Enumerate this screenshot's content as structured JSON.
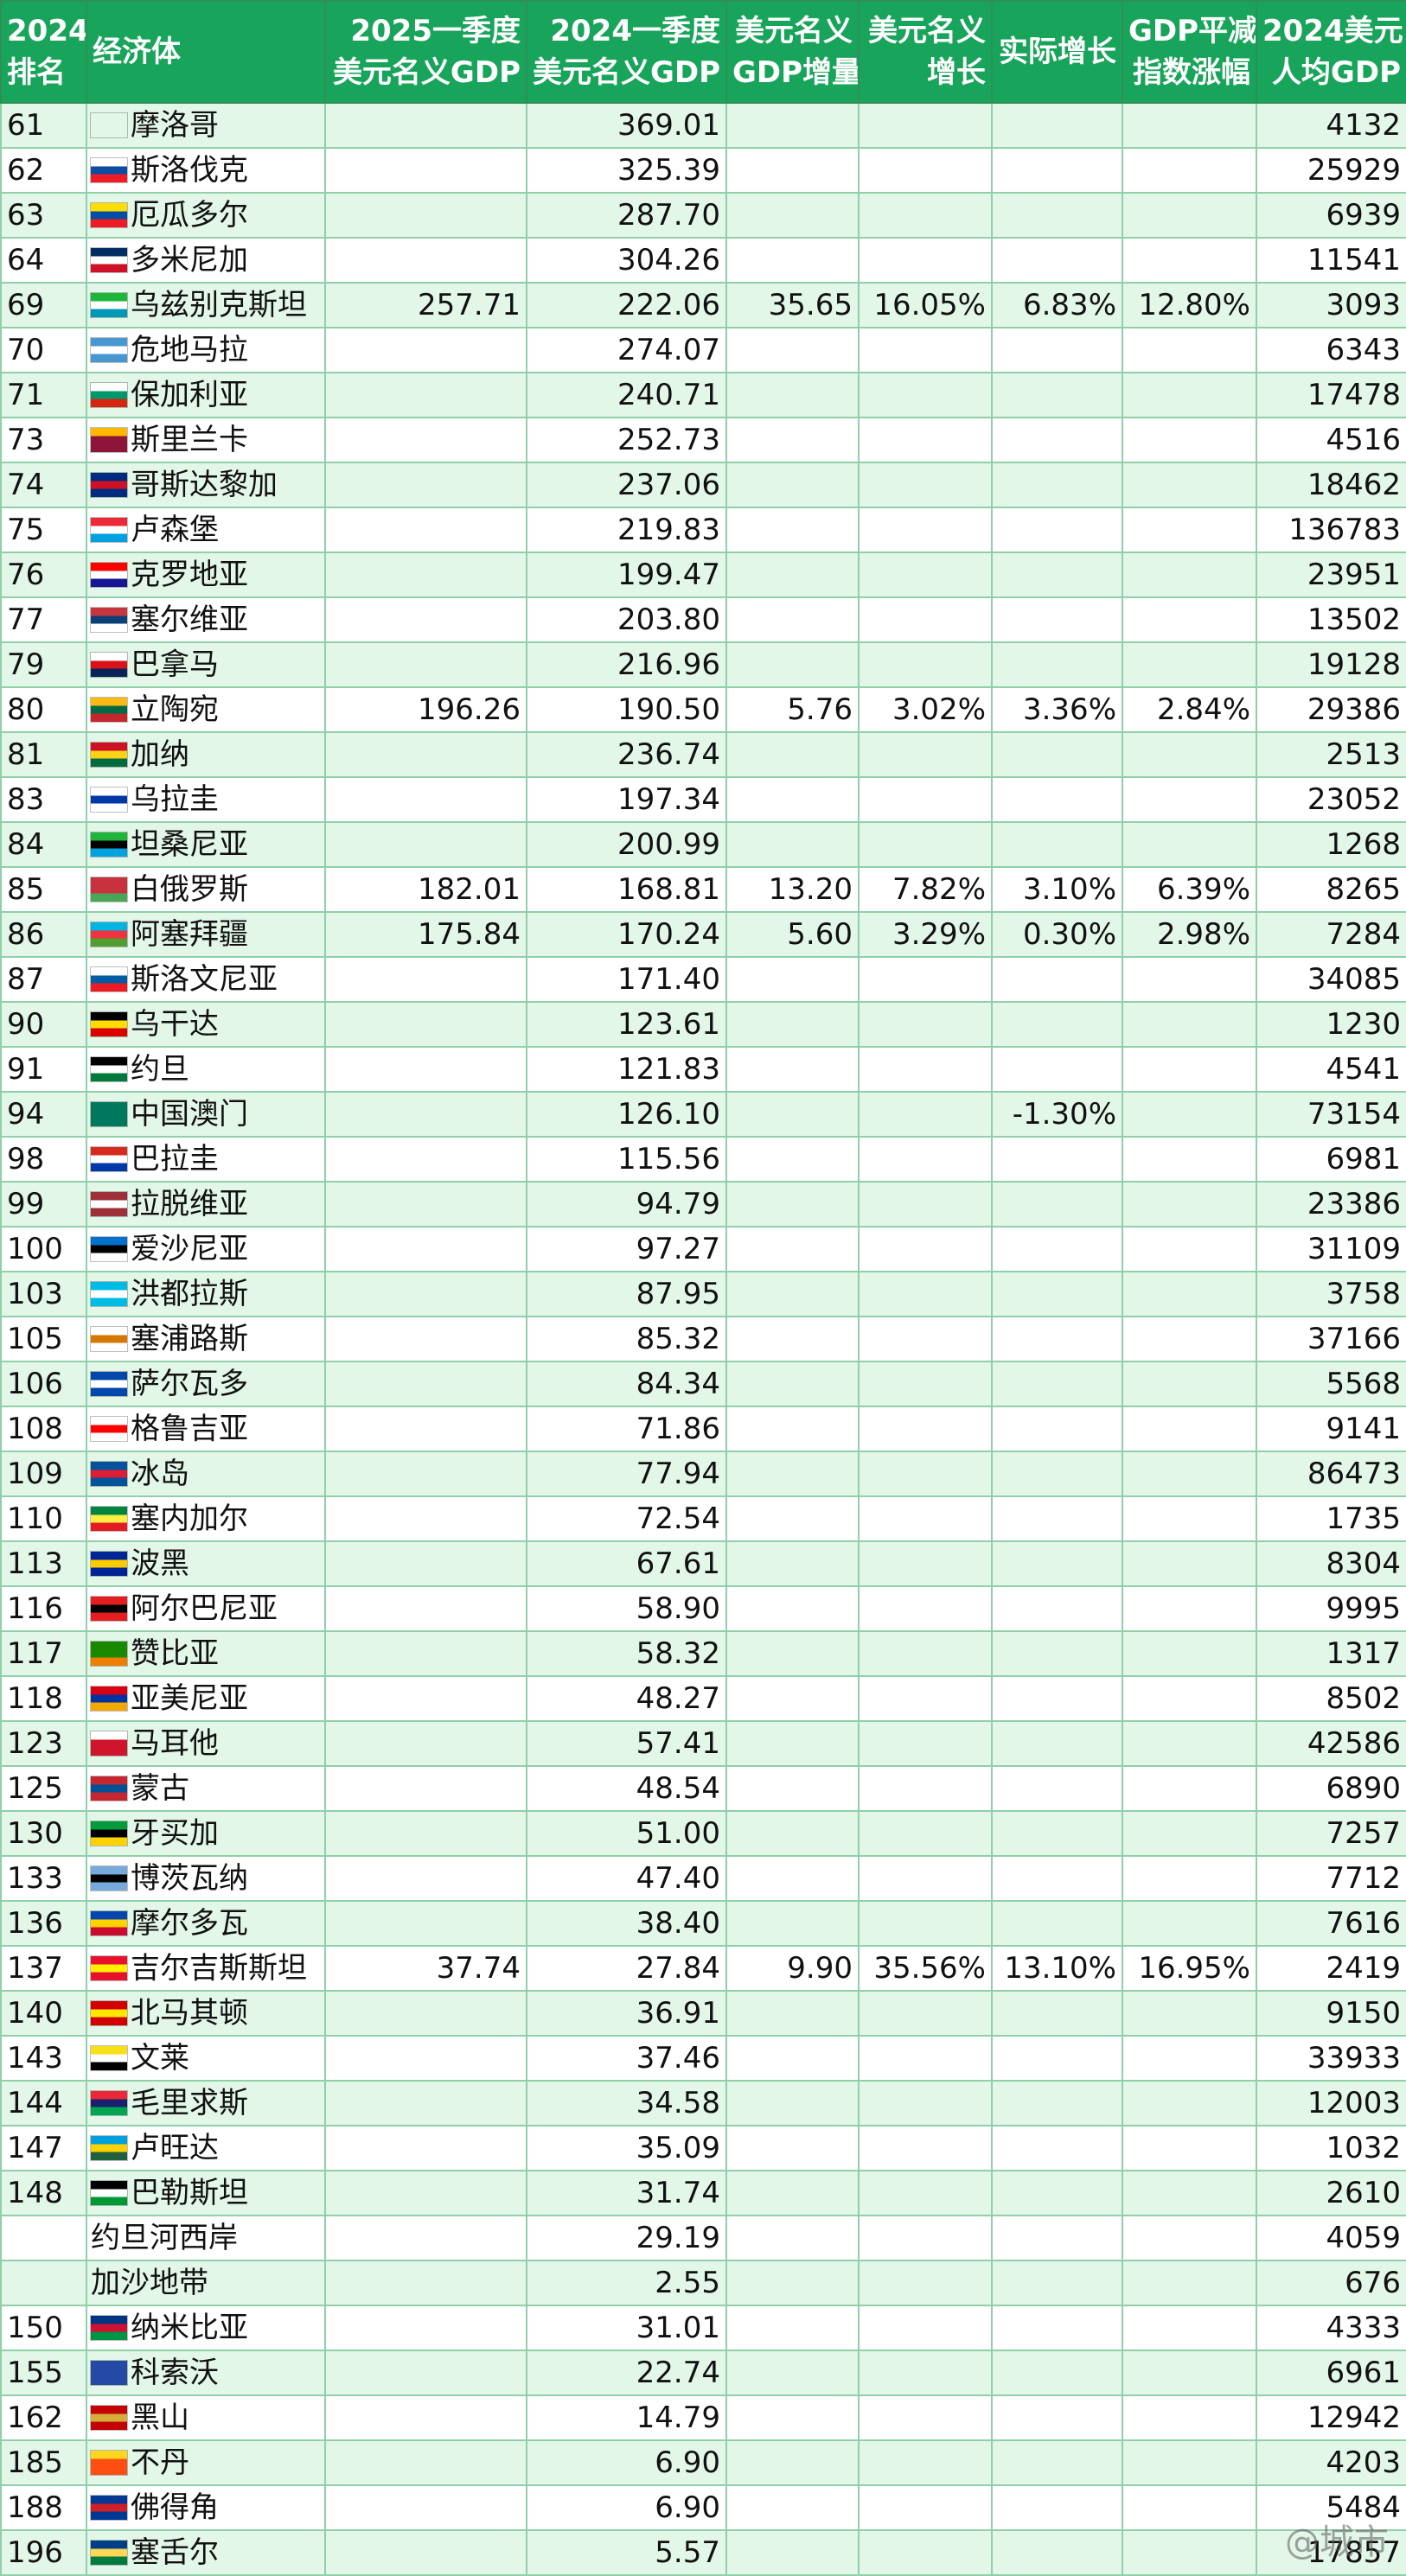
{
  "table": {
    "headers": [
      [
        "2024",
        "排名"
      ],
      [
        "经济体"
      ],
      [
        "2025一季度",
        "美元名义GDP"
      ],
      [
        "2024一季度",
        "美元名义GDP"
      ],
      [
        "美元名义",
        "GDP增量"
      ],
      [
        "美元名义",
        "增长"
      ],
      [
        "实际增长"
      ],
      [
        "GDP平减",
        "指数涨幅"
      ],
      [
        "2024美元",
        "人均GDP"
      ]
    ],
    "rows": [
      {
        "rank": "61",
        "name": "摩洛哥",
        "flag": [
          "#c1272d",
          "#c1272d"
        ],
        "gdp2025": "",
        "gdp2024": "369.01",
        "inc": "",
        "nom": "",
        "real": "",
        "defl": "",
        "pc": "4132"
      },
      {
        "rank": "62",
        "name": "斯洛伐克",
        "flag": [
          "#ffffff",
          "#0b4ea2",
          "#ee1c25"
        ],
        "gdp2025": "",
        "gdp2024": "325.39",
        "inc": "",
        "nom": "",
        "real": "",
        "defl": "",
        "pc": "25929"
      },
      {
        "rank": "63",
        "name": "厄瓜多尔",
        "flag": [
          "#ffdd00",
          "#034ea2",
          "#ed1c24"
        ],
        "gdp2025": "",
        "gdp2024": "287.70",
        "inc": "",
        "nom": "",
        "real": "",
        "defl": "",
        "pc": "6939"
      },
      {
        "rank": "64",
        "name": "多米尼加",
        "flag": [
          "#002d62",
          "#ffffff",
          "#ce1126"
        ],
        "gdp2025": "",
        "gdp2024": "304.26",
        "inc": "",
        "nom": "",
        "real": "",
        "defl": "",
        "pc": "11541"
      },
      {
        "rank": "69",
        "name": "乌兹别克斯坦",
        "flag": [
          "#1eb53a",
          "#ffffff",
          "#0099b5"
        ],
        "gdp2025": "257.71",
        "gdp2024": "222.06",
        "inc": "35.65",
        "nom": "16.05%",
        "real": "6.83%",
        "defl": "12.80%",
        "pc": "3093"
      },
      {
        "rank": "70",
        "name": "危地马拉",
        "flag": [
          "#4997d0",
          "#ffffff",
          "#4997d0"
        ],
        "gdp2025": "",
        "gdp2024": "274.07",
        "inc": "",
        "nom": "",
        "real": "",
        "defl": "",
        "pc": "6343"
      },
      {
        "rank": "71",
        "name": "保加利亚",
        "flag": [
          "#ffffff",
          "#00966e",
          "#d62612"
        ],
        "gdp2025": "",
        "gdp2024": "240.71",
        "inc": "",
        "nom": "",
        "real": "",
        "defl": "",
        "pc": "17478"
      },
      {
        "rank": "73",
        "name": "斯里兰卡",
        "flag": [
          "#ffb700",
          "#8d153a",
          "#8d153a"
        ],
        "gdp2025": "",
        "gdp2024": "252.73",
        "inc": "",
        "nom": "",
        "real": "",
        "defl": "",
        "pc": "4516"
      },
      {
        "rank": "74",
        "name": "哥斯达黎加",
        "flag": [
          "#002b7f",
          "#ce1126",
          "#002b7f"
        ],
        "gdp2025": "",
        "gdp2024": "237.06",
        "inc": "",
        "nom": "",
        "real": "",
        "defl": "",
        "pc": "18462"
      },
      {
        "rank": "75",
        "name": "卢森堡",
        "flag": [
          "#ed2939",
          "#ffffff",
          "#00a1de"
        ],
        "gdp2025": "",
        "gdp2024": "219.83",
        "inc": "",
        "nom": "",
        "real": "",
        "defl": "",
        "pc": "136783"
      },
      {
        "rank": "76",
        "name": "克罗地亚",
        "flag": [
          "#ff0000",
          "#ffffff",
          "#171796"
        ],
        "gdp2025": "",
        "gdp2024": "199.47",
        "inc": "",
        "nom": "",
        "real": "",
        "defl": "",
        "pc": "23951"
      },
      {
        "rank": "77",
        "name": "塞尔维亚",
        "flag": [
          "#c6363c",
          "#0c4076",
          "#ffffff"
        ],
        "gdp2025": "",
        "gdp2024": "203.80",
        "inc": "",
        "nom": "",
        "real": "",
        "defl": "",
        "pc": "13502"
      },
      {
        "rank": "79",
        "name": "巴拿马",
        "flag": [
          "#ffffff",
          "#da121a",
          "#072357"
        ],
        "gdp2025": "",
        "gdp2024": "216.96",
        "inc": "",
        "nom": "",
        "real": "",
        "defl": "",
        "pc": "19128"
      },
      {
        "rank": "80",
        "name": "立陶宛",
        "flag": [
          "#fdb913",
          "#006a44",
          "#c1272d"
        ],
        "gdp2025": "196.26",
        "gdp2024": "190.50",
        "inc": "5.76",
        "nom": "3.02%",
        "real": "3.36%",
        "defl": "2.84%",
        "pc": "29386"
      },
      {
        "rank": "81",
        "name": "加纳",
        "flag": [
          "#ce1126",
          "#fcd116",
          "#006b3f"
        ],
        "gdp2025": "",
        "gdp2024": "236.74",
        "inc": "",
        "nom": "",
        "real": "",
        "defl": "",
        "pc": "2513"
      },
      {
        "rank": "83",
        "name": "乌拉圭",
        "flag": [
          "#ffffff",
          "#0038a8",
          "#ffffff"
        ],
        "gdp2025": "",
        "gdp2024": "197.34",
        "inc": "",
        "nom": "",
        "real": "",
        "defl": "",
        "pc": "23052"
      },
      {
        "rank": "84",
        "name": "坦桑尼亚",
        "flag": [
          "#1eb53a",
          "#000000",
          "#00a3dd"
        ],
        "gdp2025": "",
        "gdp2024": "200.99",
        "inc": "",
        "nom": "",
        "real": "",
        "defl": "",
        "pc": "1268"
      },
      {
        "rank": "85",
        "name": "白俄罗斯",
        "flag": [
          "#c8313e",
          "#c8313e",
          "#4aa657"
        ],
        "gdp2025": "182.01",
        "gdp2024": "168.81",
        "inc": "13.20",
        "nom": "7.82%",
        "real": "3.10%",
        "defl": "6.39%",
        "pc": "8265"
      },
      {
        "rank": "86",
        "name": "阿塞拜疆",
        "flag": [
          "#00b5e2",
          "#ef3340",
          "#509e2f"
        ],
        "gdp2025": "175.84",
        "gdp2024": "170.24",
        "inc": "5.60",
        "nom": "3.29%",
        "real": "0.30%",
        "defl": "2.98%",
        "pc": "7284"
      },
      {
        "rank": "87",
        "name": "斯洛文尼亚",
        "flag": [
          "#ffffff",
          "#005da4",
          "#ed1c24"
        ],
        "gdp2025": "",
        "gdp2024": "171.40",
        "inc": "",
        "nom": "",
        "real": "",
        "defl": "",
        "pc": "34085"
      },
      {
        "rank": "90",
        "name": "乌干达",
        "flag": [
          "#000000",
          "#fcdc04",
          "#d90000"
        ],
        "gdp2025": "",
        "gdp2024": "123.61",
        "inc": "",
        "nom": "",
        "real": "",
        "defl": "",
        "pc": "1230"
      },
      {
        "rank": "91",
        "name": "约旦",
        "flag": [
          "#000000",
          "#ffffff",
          "#007a3d"
        ],
        "gdp2025": "",
        "gdp2024": "121.83",
        "inc": "",
        "nom": "",
        "real": "",
        "defl": "",
        "pc": "4541"
      },
      {
        "rank": "94",
        "name": "中国澳门",
        "flag": [
          "#00785e",
          "#00785e",
          "#00785e"
        ],
        "gdp2025": "",
        "gdp2024": "126.10",
        "inc": "",
        "nom": "",
        "real": "-1.30%",
        "defl": "",
        "pc": "73154"
      },
      {
        "rank": "98",
        "name": "巴拉圭",
        "flag": [
          "#d52b1e",
          "#ffffff",
          "#0038a8"
        ],
        "gdp2025": "",
        "gdp2024": "115.56",
        "inc": "",
        "nom": "",
        "real": "",
        "defl": "",
        "pc": "6981"
      },
      {
        "rank": "99",
        "name": "拉脱维亚",
        "flag": [
          "#9e3039",
          "#ffffff",
          "#9e3039"
        ],
        "gdp2025": "",
        "gdp2024": "94.79",
        "inc": "",
        "nom": "",
        "real": "",
        "defl": "",
        "pc": "23386"
      },
      {
        "rank": "100",
        "name": "爱沙尼亚",
        "flag": [
          "#0072ce",
          "#000000",
          "#ffffff"
        ],
        "gdp2025": "",
        "gdp2024": "97.27",
        "inc": "",
        "nom": "",
        "real": "",
        "defl": "",
        "pc": "31109"
      },
      {
        "rank": "103",
        "name": "洪都拉斯",
        "flag": [
          "#00bce4",
          "#ffffff",
          "#00bce4"
        ],
        "gdp2025": "",
        "gdp2024": "87.95",
        "inc": "",
        "nom": "",
        "real": "",
        "defl": "",
        "pc": "3758"
      },
      {
        "rank": "105",
        "name": "塞浦路斯",
        "flag": [
          "#ffffff",
          "#d57800",
          "#ffffff"
        ],
        "gdp2025": "",
        "gdp2024": "85.32",
        "inc": "",
        "nom": "",
        "real": "",
        "defl": "",
        "pc": "37166"
      },
      {
        "rank": "106",
        "name": "萨尔瓦多",
        "flag": [
          "#0047ab",
          "#ffffff",
          "#0047ab"
        ],
        "gdp2025": "",
        "gdp2024": "84.34",
        "inc": "",
        "nom": "",
        "real": "",
        "defl": "",
        "pc": "5568"
      },
      {
        "rank": "108",
        "name": "格鲁吉亚",
        "flag": [
          "#ffffff",
          "#ff0000",
          "#ffffff"
        ],
        "gdp2025": "",
        "gdp2024": "71.86",
        "inc": "",
        "nom": "",
        "real": "",
        "defl": "",
        "pc": "9141"
      },
      {
        "rank": "109",
        "name": "冰岛",
        "flag": [
          "#02529c",
          "#dc1e35",
          "#02529c"
        ],
        "gdp2025": "",
        "gdp2024": "77.94",
        "inc": "",
        "nom": "",
        "real": "",
        "defl": "",
        "pc": "86473"
      },
      {
        "rank": "110",
        "name": "塞内加尔",
        "flag": [
          "#00853f",
          "#fdef42",
          "#e31b23"
        ],
        "gdp2025": "",
        "gdp2024": "72.54",
        "inc": "",
        "nom": "",
        "real": "",
        "defl": "",
        "pc": "1735"
      },
      {
        "rank": "113",
        "name": "波黑",
        "flag": [
          "#002395",
          "#fecb00",
          "#002395"
        ],
        "gdp2025": "",
        "gdp2024": "67.61",
        "inc": "",
        "nom": "",
        "real": "",
        "defl": "",
        "pc": "8304"
      },
      {
        "rank": "116",
        "name": "阿尔巴尼亚",
        "flag": [
          "#e41e20",
          "#000000",
          "#e41e20"
        ],
        "gdp2025": "",
        "gdp2024": "58.90",
        "inc": "",
        "nom": "",
        "real": "",
        "defl": "",
        "pc": "9995"
      },
      {
        "rank": "117",
        "name": "赞比亚",
        "flag": [
          "#198a00",
          "#198a00",
          "#ef7d00"
        ],
        "gdp2025": "",
        "gdp2024": "58.32",
        "inc": "",
        "nom": "",
        "real": "",
        "defl": "",
        "pc": "1317"
      },
      {
        "rank": "118",
        "name": "亚美尼亚",
        "flag": [
          "#d90012",
          "#0033a0",
          "#f2a800"
        ],
        "gdp2025": "",
        "gdp2024": "48.27",
        "inc": "",
        "nom": "",
        "real": "",
        "defl": "",
        "pc": "8502"
      },
      {
        "rank": "123",
        "name": "马耳他",
        "flag": [
          "#ffffff",
          "#cf142b",
          "#cf142b"
        ],
        "gdp2025": "",
        "gdp2024": "57.41",
        "inc": "",
        "nom": "",
        "real": "",
        "defl": "",
        "pc": "42586"
      },
      {
        "rank": "125",
        "name": "蒙古",
        "flag": [
          "#c4272f",
          "#015197",
          "#c4272f"
        ],
        "gdp2025": "",
        "gdp2024": "48.54",
        "inc": "",
        "nom": "",
        "real": "",
        "defl": "",
        "pc": "6890"
      },
      {
        "rank": "130",
        "name": "牙买加",
        "flag": [
          "#009b3a",
          "#000000",
          "#fed100"
        ],
        "gdp2025": "",
        "gdp2024": "51.00",
        "inc": "",
        "nom": "",
        "real": "",
        "defl": "",
        "pc": "7257"
      },
      {
        "rank": "133",
        "name": "博茨瓦纳",
        "flag": [
          "#75aadb",
          "#000000",
          "#75aadb"
        ],
        "gdp2025": "",
        "gdp2024": "47.40",
        "inc": "",
        "nom": "",
        "real": "",
        "defl": "",
        "pc": "7712"
      },
      {
        "rank": "136",
        "name": "摩尔多瓦",
        "flag": [
          "#0046ae",
          "#ffd200",
          "#cc092f"
        ],
        "gdp2025": "",
        "gdp2024": "38.40",
        "inc": "",
        "nom": "",
        "real": "",
        "defl": "",
        "pc": "7616"
      },
      {
        "rank": "137",
        "name": "吉尔吉斯斯坦",
        "flag": [
          "#e8112d",
          "#ffef00",
          "#e8112d"
        ],
        "gdp2025": "37.74",
        "gdp2024": "27.84",
        "inc": "9.90",
        "nom": "35.56%",
        "real": "13.10%",
        "defl": "16.95%",
        "pc": "2419"
      },
      {
        "rank": "140",
        "name": "北马其顿",
        "flag": [
          "#d20000",
          "#ffe600",
          "#d20000"
        ],
        "gdp2025": "",
        "gdp2024": "36.91",
        "inc": "",
        "nom": "",
        "real": "",
        "defl": "",
        "pc": "9150"
      },
      {
        "rank": "143",
        "name": "文莱",
        "flag": [
          "#f7e017",
          "#ffffff",
          "#000000"
        ],
        "gdp2025": "",
        "gdp2024": "37.46",
        "inc": "",
        "nom": "",
        "real": "",
        "defl": "",
        "pc": "33933"
      },
      {
        "rank": "144",
        "name": "毛里求斯",
        "flag": [
          "#ea2839",
          "#1a206d",
          "#00a551"
        ],
        "gdp2025": "",
        "gdp2024": "34.58",
        "inc": "",
        "nom": "",
        "real": "",
        "defl": "",
        "pc": "12003"
      },
      {
        "rank": "147",
        "name": "卢旺达",
        "flag": [
          "#00a1de",
          "#fad201",
          "#20603d"
        ],
        "gdp2025": "",
        "gdp2024": "35.09",
        "inc": "",
        "nom": "",
        "real": "",
        "defl": "",
        "pc": "1032"
      },
      {
        "rank": "148",
        "name": "巴勒斯坦",
        "flag": [
          "#000000",
          "#ffffff",
          "#009736"
        ],
        "gdp2025": "",
        "gdp2024": "31.74",
        "inc": "",
        "nom": "",
        "real": "",
        "defl": "",
        "pc": "2610"
      },
      {
        "rank": "",
        "name": "约旦河西岸",
        "flag": null,
        "gdp2025": "",
        "gdp2024": "29.19",
        "inc": "",
        "nom": "",
        "real": "",
        "defl": "",
        "pc": "4059"
      },
      {
        "rank": "",
        "name": "加沙地带",
        "flag": null,
        "gdp2025": "",
        "gdp2024": "2.55",
        "inc": "",
        "nom": "",
        "real": "",
        "defl": "",
        "pc": "676"
      },
      {
        "rank": "150",
        "name": "纳米比亚",
        "flag": [
          "#003580",
          "#d21034",
          "#009543"
        ],
        "gdp2025": "",
        "gdp2024": "31.01",
        "inc": "",
        "nom": "",
        "real": "",
        "defl": "",
        "pc": "4333"
      },
      {
        "rank": "155",
        "name": "科索沃",
        "flag": [
          "#244aa5",
          "#244aa5",
          "#244aa5"
        ],
        "gdp2025": "",
        "gdp2024": "22.74",
        "inc": "",
        "nom": "",
        "real": "",
        "defl": "",
        "pc": "6961"
      },
      {
        "rank": "162",
        "name": "黑山",
        "flag": [
          "#c40308",
          "#d4af37",
          "#c40308"
        ],
        "gdp2025": "",
        "gdp2024": "14.79",
        "inc": "",
        "nom": "",
        "real": "",
        "defl": "",
        "pc": "12942"
      },
      {
        "rank": "185",
        "name": "不丹",
        "flag": [
          "#ffd520",
          "#ff4e12",
          "#ff4e12"
        ],
        "gdp2025": "",
        "gdp2024": "6.90",
        "inc": "",
        "nom": "",
        "real": "",
        "defl": "",
        "pc": "4203"
      },
      {
        "rank": "188",
        "name": "佛得角",
        "flag": [
          "#003893",
          "#cf2027",
          "#003893"
        ],
        "gdp2025": "",
        "gdp2024": "6.90",
        "inc": "",
        "nom": "",
        "real": "",
        "defl": "",
        "pc": "5484"
      },
      {
        "rank": "196",
        "name": "塞舌尔",
        "flag": [
          "#003f87",
          "#fcd856",
          "#007a3d"
        ],
        "gdp2025": "",
        "gdp2024": "5.57",
        "inc": "",
        "nom": "",
        "real": "",
        "defl": "",
        "pc": "17857"
      }
    ]
  },
  "watermark": "@城市"
}
